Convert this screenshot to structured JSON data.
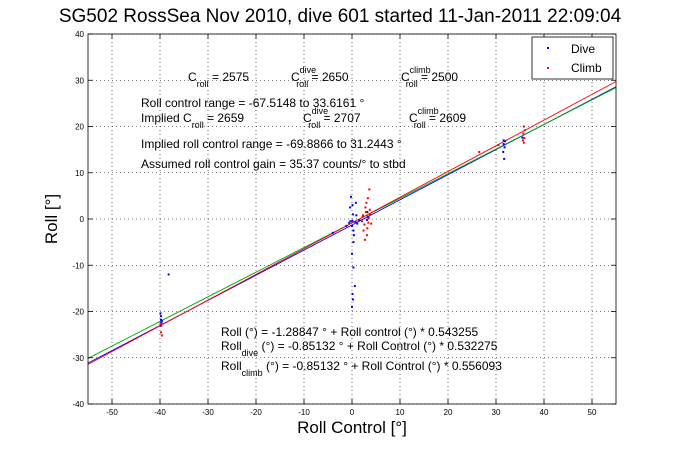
{
  "chart_data": {
    "type": "scatter",
    "title": "SG502 RossSea Nov 2010, dive 601 started 11-Jan-2011 22:09:04",
    "xlabel": "Roll Control [°]",
    "ylabel": "Roll [°]",
    "xlim": [
      -55,
      55
    ],
    "ylim": [
      -40,
      40
    ],
    "xticks": [
      -50,
      -40,
      -30,
      -20,
      -10,
      0,
      10,
      20,
      30,
      40,
      50
    ],
    "yticks": [
      -40,
      -30,
      -20,
      -10,
      0,
      10,
      20,
      30,
      40
    ],
    "grid": true,
    "legend_position": "top-right",
    "legend": [
      {
        "label": "Dive",
        "color": "#0000ff"
      },
      {
        "label": "Climb",
        "color": "#ff0000"
      }
    ],
    "series": [
      {
        "name": "Dive",
        "color": "#0000ff",
        "x": [
          -39.8,
          -39.8,
          -39.7,
          -39.9,
          -39.8,
          -39.6,
          -38.2,
          -0.2,
          0.1,
          0.2,
          -0.3,
          0.4,
          0.0,
          0.3,
          0.6,
          0.1,
          0.2,
          0.0,
          0.3,
          -0.4,
          0.7,
          1.1,
          1.5,
          0.8,
          0.9,
          0.0,
          0.3,
          0.1,
          -1.2,
          -0.6,
          -4.0,
          3.2,
          3.3,
          3.1,
          3.4,
          31.6,
          31.8,
          31.5,
          31.7,
          31.6,
          31.9,
          35.5
        ],
        "y": [
          -21.0,
          -21.8,
          -22.4,
          -20.4,
          -23.1,
          -22.0,
          -12.0,
          4.8,
          3.0,
          1.0,
          -0.5,
          -3.5,
          -7.5,
          -10.5,
          -14.5,
          -16.2,
          -17.4,
          -19.0,
          -5.0,
          2.5,
          -0.6,
          -1.0,
          -0.3,
          3.5,
          0.8,
          -1.5,
          -2.5,
          -0.4,
          -1.5,
          -0.8,
          -3.0,
          1.5,
          0.5,
          -0.2,
          0.3,
          17.0,
          15.5,
          14.5,
          13.0,
          16.2,
          16.8,
          17.6
        ]
      },
      {
        "name": "Climb",
        "color": "#ff0000",
        "x": [
          -39.7,
          -39.8,
          -39.6,
          -39.9,
          2.1,
          2.3,
          2.6,
          2.9,
          3.2,
          3.5,
          3.7,
          4.0,
          2.4,
          2.8,
          3.3,
          3.6,
          2.2,
          3.1,
          3.8,
          3.4,
          2.7,
          3.0,
          35.8,
          35.9,
          35.7,
          36.0,
          35.8,
          35.6,
          30.5,
          26.5
        ],
        "y": [
          -23.0,
          -24.5,
          -25.2,
          -22.8,
          -0.5,
          0.8,
          -1.2,
          1.5,
          -2.0,
          0.2,
          2.0,
          -1.0,
          -2.5,
          2.5,
          4.5,
          6.4,
          0.5,
          -3.5,
          1.0,
          -0.8,
          -4.5,
          3.5,
          16.5,
          17.5,
          18.5,
          19.2,
          20.0,
          17.0,
          16.0,
          14.5
        ]
      }
    ],
    "fit_lines": [
      {
        "label": "Roll (°) = -1.28847 ° + Roll control (°) * 0.543255",
        "color": "#0000ff",
        "intercept": -1.28847,
        "slope": 0.543255
      },
      {
        "label": "Roll dive (°) = -0.85132 ° + Roll Control (°) * 0.532275",
        "color": "#00aa00",
        "intercept": -0.85132,
        "slope": 0.532275
      },
      {
        "label": "Roll climb (°) = -0.85132 ° + Roll Control (°) * 0.556093",
        "color": "#ff0000",
        "intercept": -0.85132,
        "slope": 0.556093
      }
    ],
    "annotations": {
      "c_roll": "C",
      "c_roll_sub": "roll",
      "c_roll_val": " = 2575",
      "c_dive": "C",
      "c_dive_sup": "dive",
      "c_dive_sub": "roll",
      "c_dive_val": " = 2650",
      "c_climb": "C",
      "c_climb_sup": "climb",
      "c_climb_sub": "roll",
      "c_climb_val": " = 2500",
      "range": "Roll control range = -67.5148 to 33.6161 °",
      "implied_prefix": "Implied C",
      "implied_sub": "roll",
      "implied_val": " = 2659",
      "implied_dive": "C",
      "implied_dive_sup": "dive",
      "implied_dive_sub": "roll",
      "implied_dive_val": " = 2707",
      "implied_climb": "C",
      "implied_climb_sup": "climb",
      "implied_climb_sub": "roll",
      "implied_climb_val": " = 2609",
      "implied_range": "Implied roll control range = -69.8866 to 31.2443 °",
      "gain": "Assumed roll control gain = 35.37 counts/° to stbd",
      "eq1": "Roll (°) = -1.28847 ° + Roll control (°) * 0.543255",
      "eq2_a": "Roll",
      "eq2_sub": "dive",
      "eq2_b": " (°) = -0.85132 ° + Roll Control (°) * 0.532275",
      "eq3_a": "Roll",
      "eq3_sub": "climb",
      "eq3_b": " (°) = -0.85132 ° + Roll Control (°) * 0.556093"
    }
  }
}
